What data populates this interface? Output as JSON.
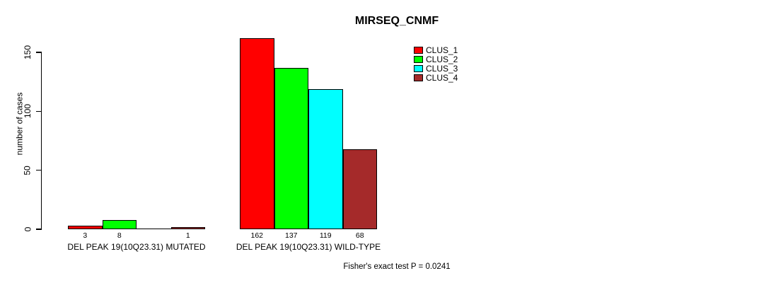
{
  "chart_data": {
    "type": "bar",
    "title": "MIRSEQ_CNMF",
    "ylabel": "number of cases",
    "yticks": [
      0,
      50,
      100,
      150
    ],
    "ylim": [
      0,
      150
    ],
    "grid": false,
    "legend_position": "top-right-of-plot",
    "categories": [
      "DEL PEAK 19(10Q23.31) MUTATED",
      "DEL PEAK 19(10Q23.31) WILD-TYPE"
    ],
    "series": [
      {
        "name": "CLUS_1",
        "color": "#FF0000",
        "values": [
          3,
          162
        ]
      },
      {
        "name": "CLUS_2",
        "color": "#00FF00",
        "values": [
          8,
          137
        ]
      },
      {
        "name": "CLUS_3",
        "color": "#00FFFF",
        "values": [
          0,
          119
        ]
      },
      {
        "name": "CLUS_4",
        "color": "#A52A2A",
        "values": [
          1,
          68
        ]
      }
    ],
    "bar_value_labels": [
      [
        "3",
        "8",
        "",
        "1"
      ],
      [
        "162",
        "137",
        "119",
        "68"
      ]
    ],
    "annotation": "Fisher's exact test P = 0.0241"
  }
}
